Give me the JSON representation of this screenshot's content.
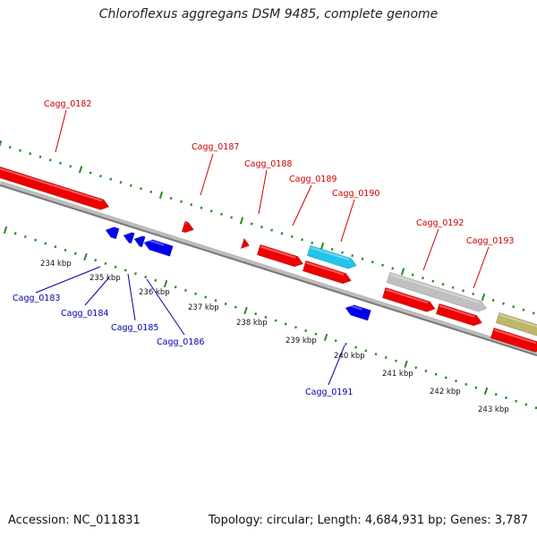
{
  "title": "Chloroflexus aggregans DSM 9485, complete genome",
  "footer": {
    "accession": "Accession: NC_011831",
    "summary": "Topology: circular; Length: 4,684,931 bp; Genes: 3,787"
  },
  "colors": {
    "forward_label": "#cc0000",
    "reverse_label": "#0000aa",
    "tick_mark": "#228b22",
    "backbone": "#7a7a7a",
    "gene_red": "#ee0000",
    "gene_blue": "#0000ee",
    "gene_cyan": "#22c4ee",
    "gene_gray": "#c0c0c0",
    "gene_olive": "#bdb76b"
  },
  "scale_labels": [
    "234 kbp",
    "235 kbp",
    "236 kbp",
    "237 kbp",
    "238 kbp",
    "239 kbp",
    "240 kbp",
    "241 kbp",
    "242 kbp",
    "243 kbp"
  ],
  "forward_genes": [
    {
      "label": "Cagg_0182",
      "color": "gene_red"
    },
    {
      "label": "Cagg_0187",
      "color": "gene_red"
    },
    {
      "label": "Cagg_0188",
      "color": "gene_red"
    },
    {
      "label": "Cagg_0189",
      "color": "gene_red"
    },
    {
      "label": "Cagg_0190",
      "color": "gene_cyan"
    },
    {
      "label": "Cagg_0192",
      "color": "gene_gray"
    },
    {
      "label": "Cagg_0193",
      "color": "gene_red"
    }
  ],
  "reverse_genes": [
    {
      "label": "Cagg_0183",
      "color": "gene_blue"
    },
    {
      "label": "Cagg_0184",
      "color": "gene_blue"
    },
    {
      "label": "Cagg_0185",
      "color": "gene_blue"
    },
    {
      "label": "Cagg_0186",
      "color": "gene_blue"
    },
    {
      "label": "Cagg_0191",
      "color": "gene_blue"
    }
  ]
}
